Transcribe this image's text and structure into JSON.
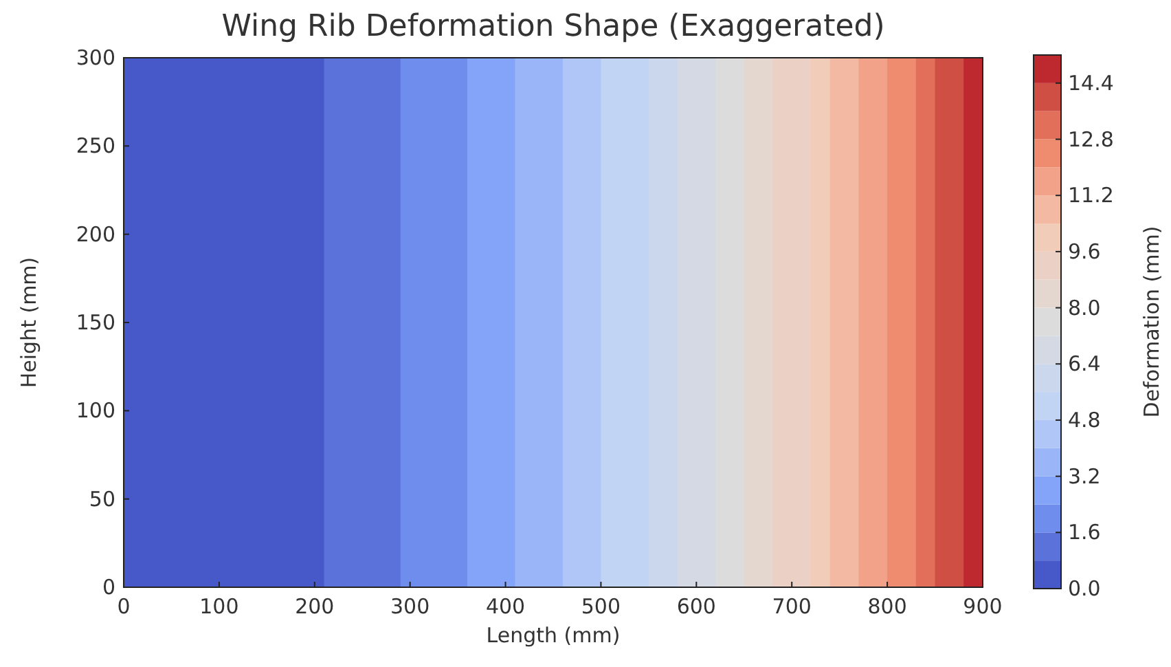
{
  "chart_data": {
    "type": "heatmap",
    "title": "Wing Rib Deformation Shape (Exaggerated)",
    "xlabel": "Length (mm)",
    "ylabel": "Height (mm)",
    "clabel": "Deformation (mm)",
    "x": [
      5,
      15,
      25,
      35,
      45,
      55,
      65,
      75,
      85,
      95,
      105,
      115,
      125,
      135,
      145,
      155,
      165,
      175,
      185,
      195,
      205,
      215,
      225,
      235,
      245,
      255,
      265,
      275,
      285,
      295,
      305,
      315,
      325,
      335,
      345,
      355,
      365,
      375,
      385,
      395,
      405,
      415,
      425,
      435,
      445,
      455,
      465,
      475,
      485,
      495,
      505,
      515,
      525,
      535,
      545,
      555,
      565,
      575,
      585,
      595,
      605,
      615,
      625,
      635,
      645,
      655,
      665,
      675,
      685,
      695,
      705,
      715,
      725,
      735,
      745,
      755,
      765,
      775,
      785,
      795,
      805,
      815,
      825,
      835,
      845,
      855,
      865,
      875,
      885,
      895
    ],
    "cells": [
      [
        0.4,
        0.4,
        0.4,
        0.4,
        0.4,
        0.4,
        0.4,
        0.4,
        0.4,
        0.4,
        0.4,
        0.4,
        0.4,
        0.4,
        0.4,
        0.4,
        0.4,
        0.4,
        0.4,
        0.4,
        0.4,
        1.2,
        1.2,
        1.2,
        1.2,
        1.2,
        1.2,
        1.2,
        1.2,
        2.0,
        2.0,
        2.0,
        2.0,
        2.0,
        2.0,
        2.0,
        2.8,
        2.8,
        2.8,
        2.8,
        2.8,
        3.6,
        3.6,
        3.6,
        3.6,
        3.6,
        4.4,
        4.4,
        4.4,
        4.4,
        5.2,
        5.2,
        5.2,
        5.2,
        5.2,
        6.0,
        6.0,
        6.0,
        6.8,
        6.8,
        6.8,
        6.8,
        7.6,
        7.6,
        7.6,
        8.4,
        8.4,
        8.4,
        9.2,
        9.2,
        9.2,
        9.2,
        10.0,
        10.0,
        10.8,
        10.8,
        10.8,
        11.6,
        11.6,
        11.6,
        12.4,
        12.4,
        12.4,
        13.2,
        13.2,
        14.0,
        14.0,
        14.0,
        14.8,
        14.8
      ]
    ],
    "xlim": [
      0,
      900
    ],
    "xticks": [
      0,
      100,
      200,
      300,
      400,
      500,
      600,
      700,
      800,
      900
    ],
    "ylim": [
      0,
      300
    ],
    "yticks": [
      0,
      50,
      100,
      150,
      200,
      250,
      300
    ],
    "clim": [
      0,
      15.2
    ],
    "cticks": [
      {
        "value": 0,
        "label": "0.0"
      },
      1.6,
      3.2,
      4.8,
      6.4,
      {
        "value": 8,
        "label": "8.0"
      },
      9.6,
      11.2,
      12.8,
      14.4
    ]
  }
}
